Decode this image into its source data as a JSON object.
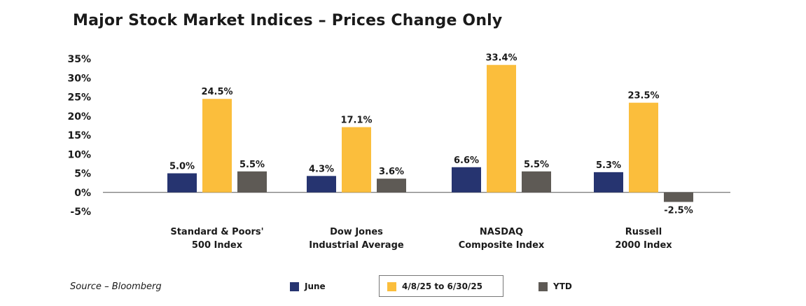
{
  "title": "Major Stock Market Indices – Prices Change Only",
  "source": "Source – Bloomberg",
  "colors": {
    "june": "#263470",
    "period": "#FBBE3C",
    "ytd": "#5E5A55",
    "axis": "#555555"
  },
  "chart_data": {
    "type": "bar",
    "title": "Major Stock Market Indices – Prices Change Only",
    "categories": [
      [
        "Standard & Poors'",
        "500 Index"
      ],
      [
        "Dow Jones",
        "Industrial Average"
      ],
      [
        "NASDAQ",
        "Composite Index"
      ],
      [
        "Russell",
        "2000 Index"
      ]
    ],
    "series": [
      {
        "name": "June",
        "values": [
          5.0,
          4.3,
          6.6,
          5.3
        ],
        "labels": [
          "5.0%",
          "4.3%",
          "6.6%",
          "5.3%"
        ]
      },
      {
        "name": "4/8/25 to 6/30/25",
        "values": [
          24.5,
          17.1,
          33.4,
          23.5
        ],
        "labels": [
          "24.5%",
          "17.1%",
          "33.4%",
          "23.5%"
        ]
      },
      {
        "name": "YTD",
        "values": [
          5.5,
          3.6,
          5.5,
          -2.5
        ],
        "labels": [
          "5.5%",
          "3.6%",
          "5.5%",
          "-2.5%"
        ]
      }
    ],
    "yticks": [
      "35%",
      "30%",
      "25%",
      "20%",
      "15%",
      "10%",
      "5%",
      "0%",
      "-5%"
    ],
    "ylim": [
      -5,
      35
    ],
    "xlabel": "",
    "ylabel": "",
    "legend_position": "bottom"
  }
}
